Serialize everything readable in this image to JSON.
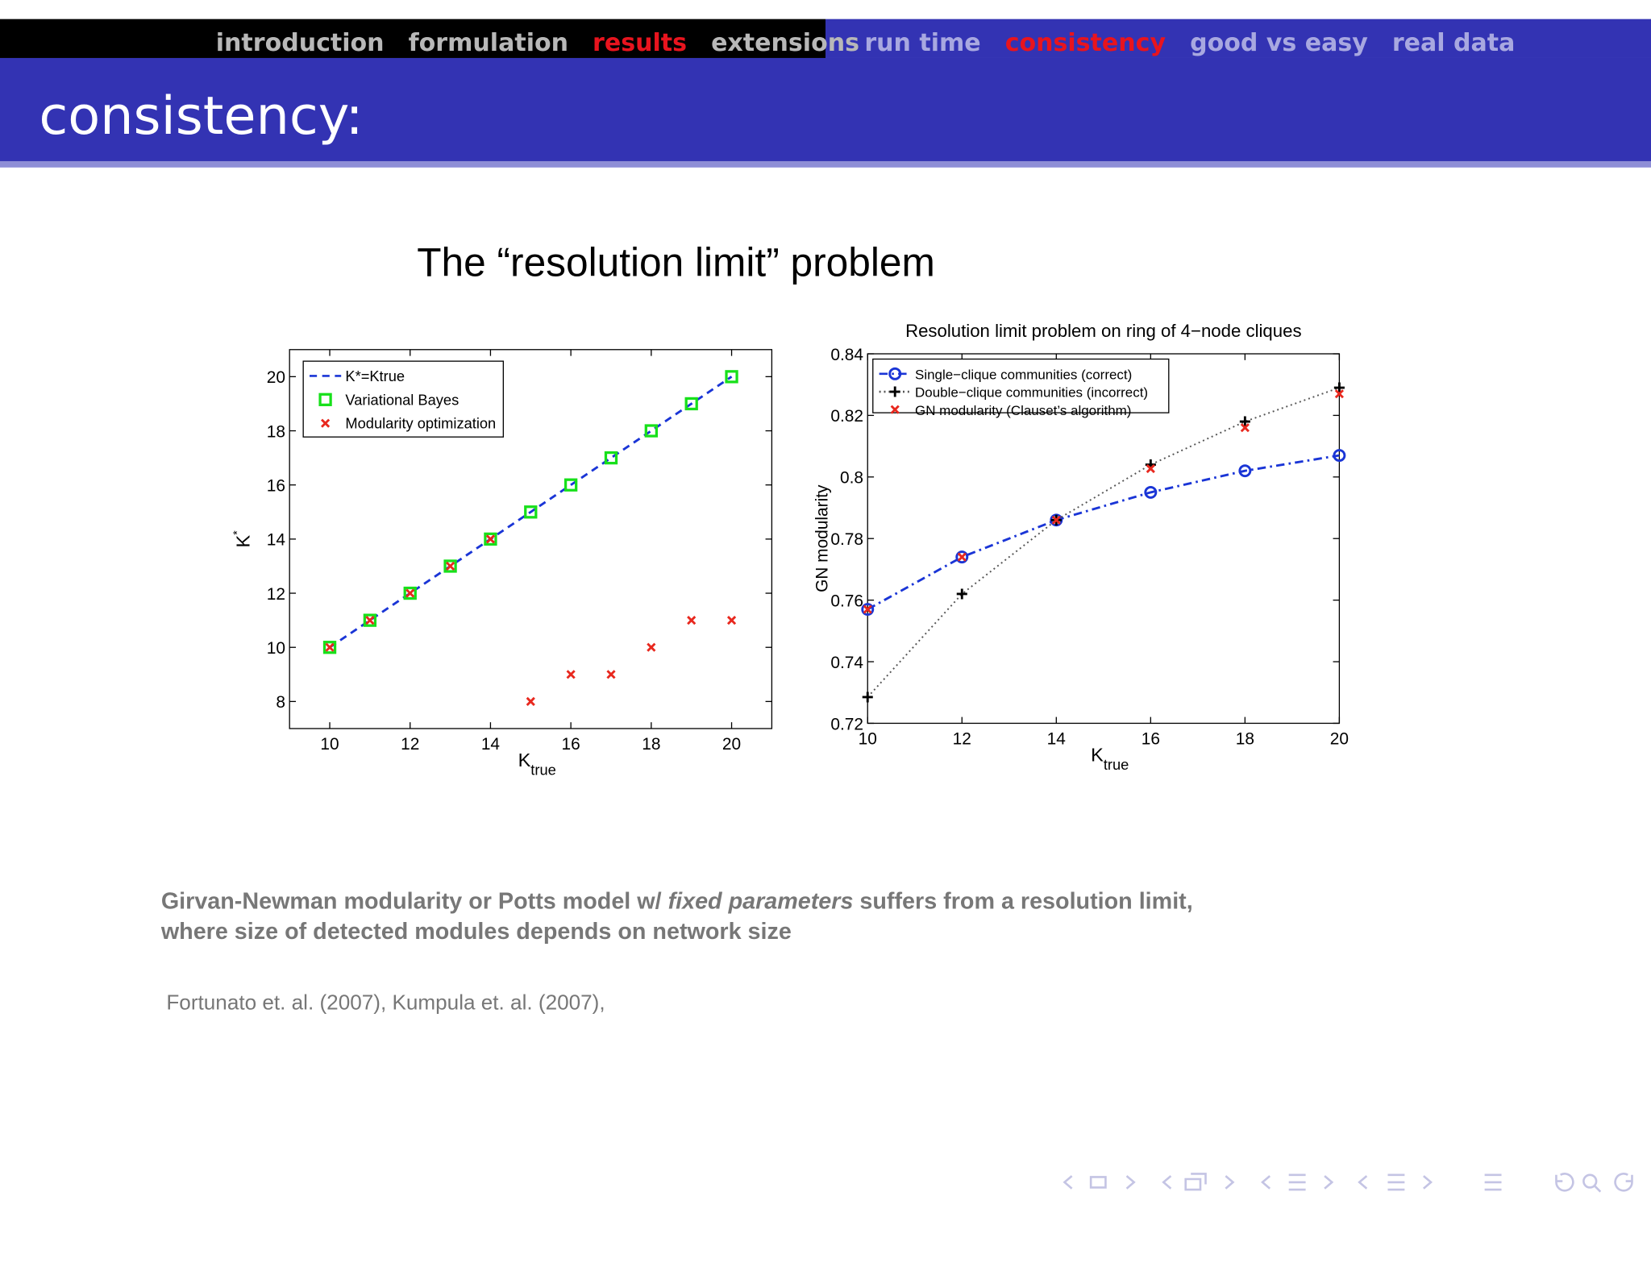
{
  "header": {
    "sections": [
      "introduction",
      "formulation",
      "results",
      "extensions"
    ],
    "active_section": 2,
    "subsections": [
      "run time",
      "consistency",
      "good vs easy",
      "real data"
    ],
    "active_subsection": 1,
    "title": "consistency:"
  },
  "slide_heading": "The “resolution limit” problem",
  "body": {
    "line1": [
      "Girvan-Newman modularity or Potts model w/ ",
      "fixed parameters",
      " suffers from a resolution limit,"
    ],
    "line2": "where size of detected modules depends on network size"
  },
  "reference": "Fortunato et. al. (2007), Kumpula et. al. (2007),",
  "chart_data": [
    {
      "type": "line",
      "xlabel": [
        "K",
        "true"
      ],
      "ylabel": [
        "K",
        "*"
      ],
      "x": [
        10,
        11,
        12,
        13,
        14,
        15,
        16,
        17,
        18,
        19,
        20
      ],
      "xlim": [
        9,
        21
      ],
      "ylim": [
        7,
        21
      ],
      "xticks": [
        10,
        12,
        14,
        16,
        18,
        20
      ],
      "yticks": [
        8,
        10,
        12,
        14,
        16,
        18,
        20
      ],
      "legend": "upper left",
      "series": [
        {
          "name": "K*=Ktrue",
          "color": "#1a35d6",
          "line": "dashed",
          "marker": "none",
          "values": [
            10,
            11,
            12,
            13,
            14,
            15,
            16,
            17,
            18,
            19,
            20
          ]
        },
        {
          "name": "Variational Bayes",
          "color": "#17e01a",
          "line": "none",
          "marker": "square",
          "values": [
            10,
            11,
            12,
            13,
            14,
            15,
            16,
            17,
            18,
            19,
            20
          ]
        },
        {
          "name": "Modularity optimization",
          "color": "#e8281e",
          "line": "none",
          "marker": "x",
          "values": [
            10,
            11,
            12,
            13,
            14,
            8,
            9,
            9,
            10,
            11,
            11
          ]
        }
      ]
    },
    {
      "type": "line",
      "title": "Resolution limit problem on ring of 4−node cliques",
      "xlabel": [
        "K",
        "true"
      ],
      "ylabel": [
        "GN modularity"
      ],
      "x": [
        10,
        12,
        14,
        16,
        18,
        20
      ],
      "xlim": [
        10,
        20
      ],
      "ylim": [
        0.72,
        0.84
      ],
      "xticks": [
        10,
        12,
        14,
        16,
        18,
        20
      ],
      "yticks": [
        0.72,
        0.74,
        0.76,
        0.78,
        0.8,
        0.82,
        0.84
      ],
      "legend": "upper left",
      "series": [
        {
          "name": "Single−clique communities (correct)",
          "color": "#1a35d6",
          "line": "dashdot",
          "marker": "circle",
          "values": [
            0.757,
            0.774,
            0.786,
            0.795,
            0.802,
            0.807
          ]
        },
        {
          "name": "Double−clique communities (incorrect)",
          "color": "#555555",
          "line": "dotted",
          "marker": "plus",
          "values": [
            0.7285,
            0.762,
            0.786,
            0.804,
            0.818,
            0.829
          ]
        },
        {
          "name": "GN modularity (Clauset’s algorithm)",
          "color": "#e8281e",
          "line": "none",
          "marker": "x",
          "values": [
            0.757,
            0.774,
            0.786,
            0.8027,
            0.816,
            0.827
          ]
        }
      ]
    }
  ]
}
